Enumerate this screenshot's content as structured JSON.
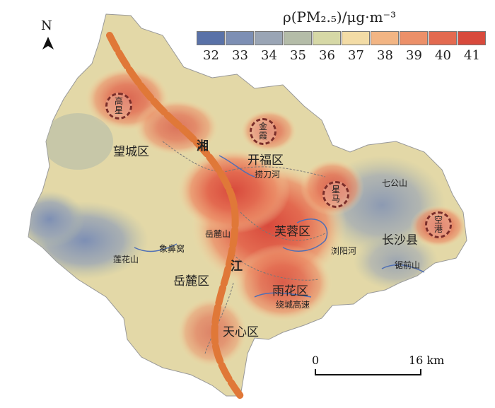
{
  "legend": {
    "title": "ρ(PM₂.₅)/μg·m⁻³",
    "ticks": [
      "32",
      "33",
      "34",
      "35",
      "36",
      "37",
      "38",
      "39",
      "40",
      "41"
    ],
    "colors": [
      "#5a72a8",
      "#7d8fb4",
      "#9aa5b5",
      "#b4bca8",
      "#d6d8a6",
      "#f3dca6",
      "#f2b584",
      "#ec9069",
      "#e36a50",
      "#d84a3c"
    ]
  },
  "north": "N",
  "districts": {
    "wangcheng": "望城区",
    "kaifu": "开福区",
    "furong": "芙蓉区",
    "yuelu": "岳麓区",
    "tianxin": "天心区",
    "yuhua": "雨花区",
    "changsha_county": "长沙县"
  },
  "river_chars": [
    "湘",
    "江"
  ],
  "features": {
    "laodao": "捞刀河",
    "liuyang": "浏阳河",
    "yuelushan": "岳麓山",
    "xiangbiwo": "象鼻窝",
    "lianhuashan": "莲花山",
    "qigongshan": "七公山",
    "juqianshan": "锯前山",
    "ring": "绕城高速"
  },
  "hotspots": [
    {
      "id": "gaoxing",
      "lines": [
        "高",
        "星"
      ]
    },
    {
      "id": "jinxia",
      "lines": [
        "金",
        "霞"
      ]
    },
    {
      "id": "xingma",
      "lines": [
        "星",
        "马"
      ]
    },
    {
      "id": "konggang",
      "lines": [
        "空",
        "港"
      ]
    }
  ],
  "scale": {
    "start": "0",
    "end": "16 km"
  }
}
